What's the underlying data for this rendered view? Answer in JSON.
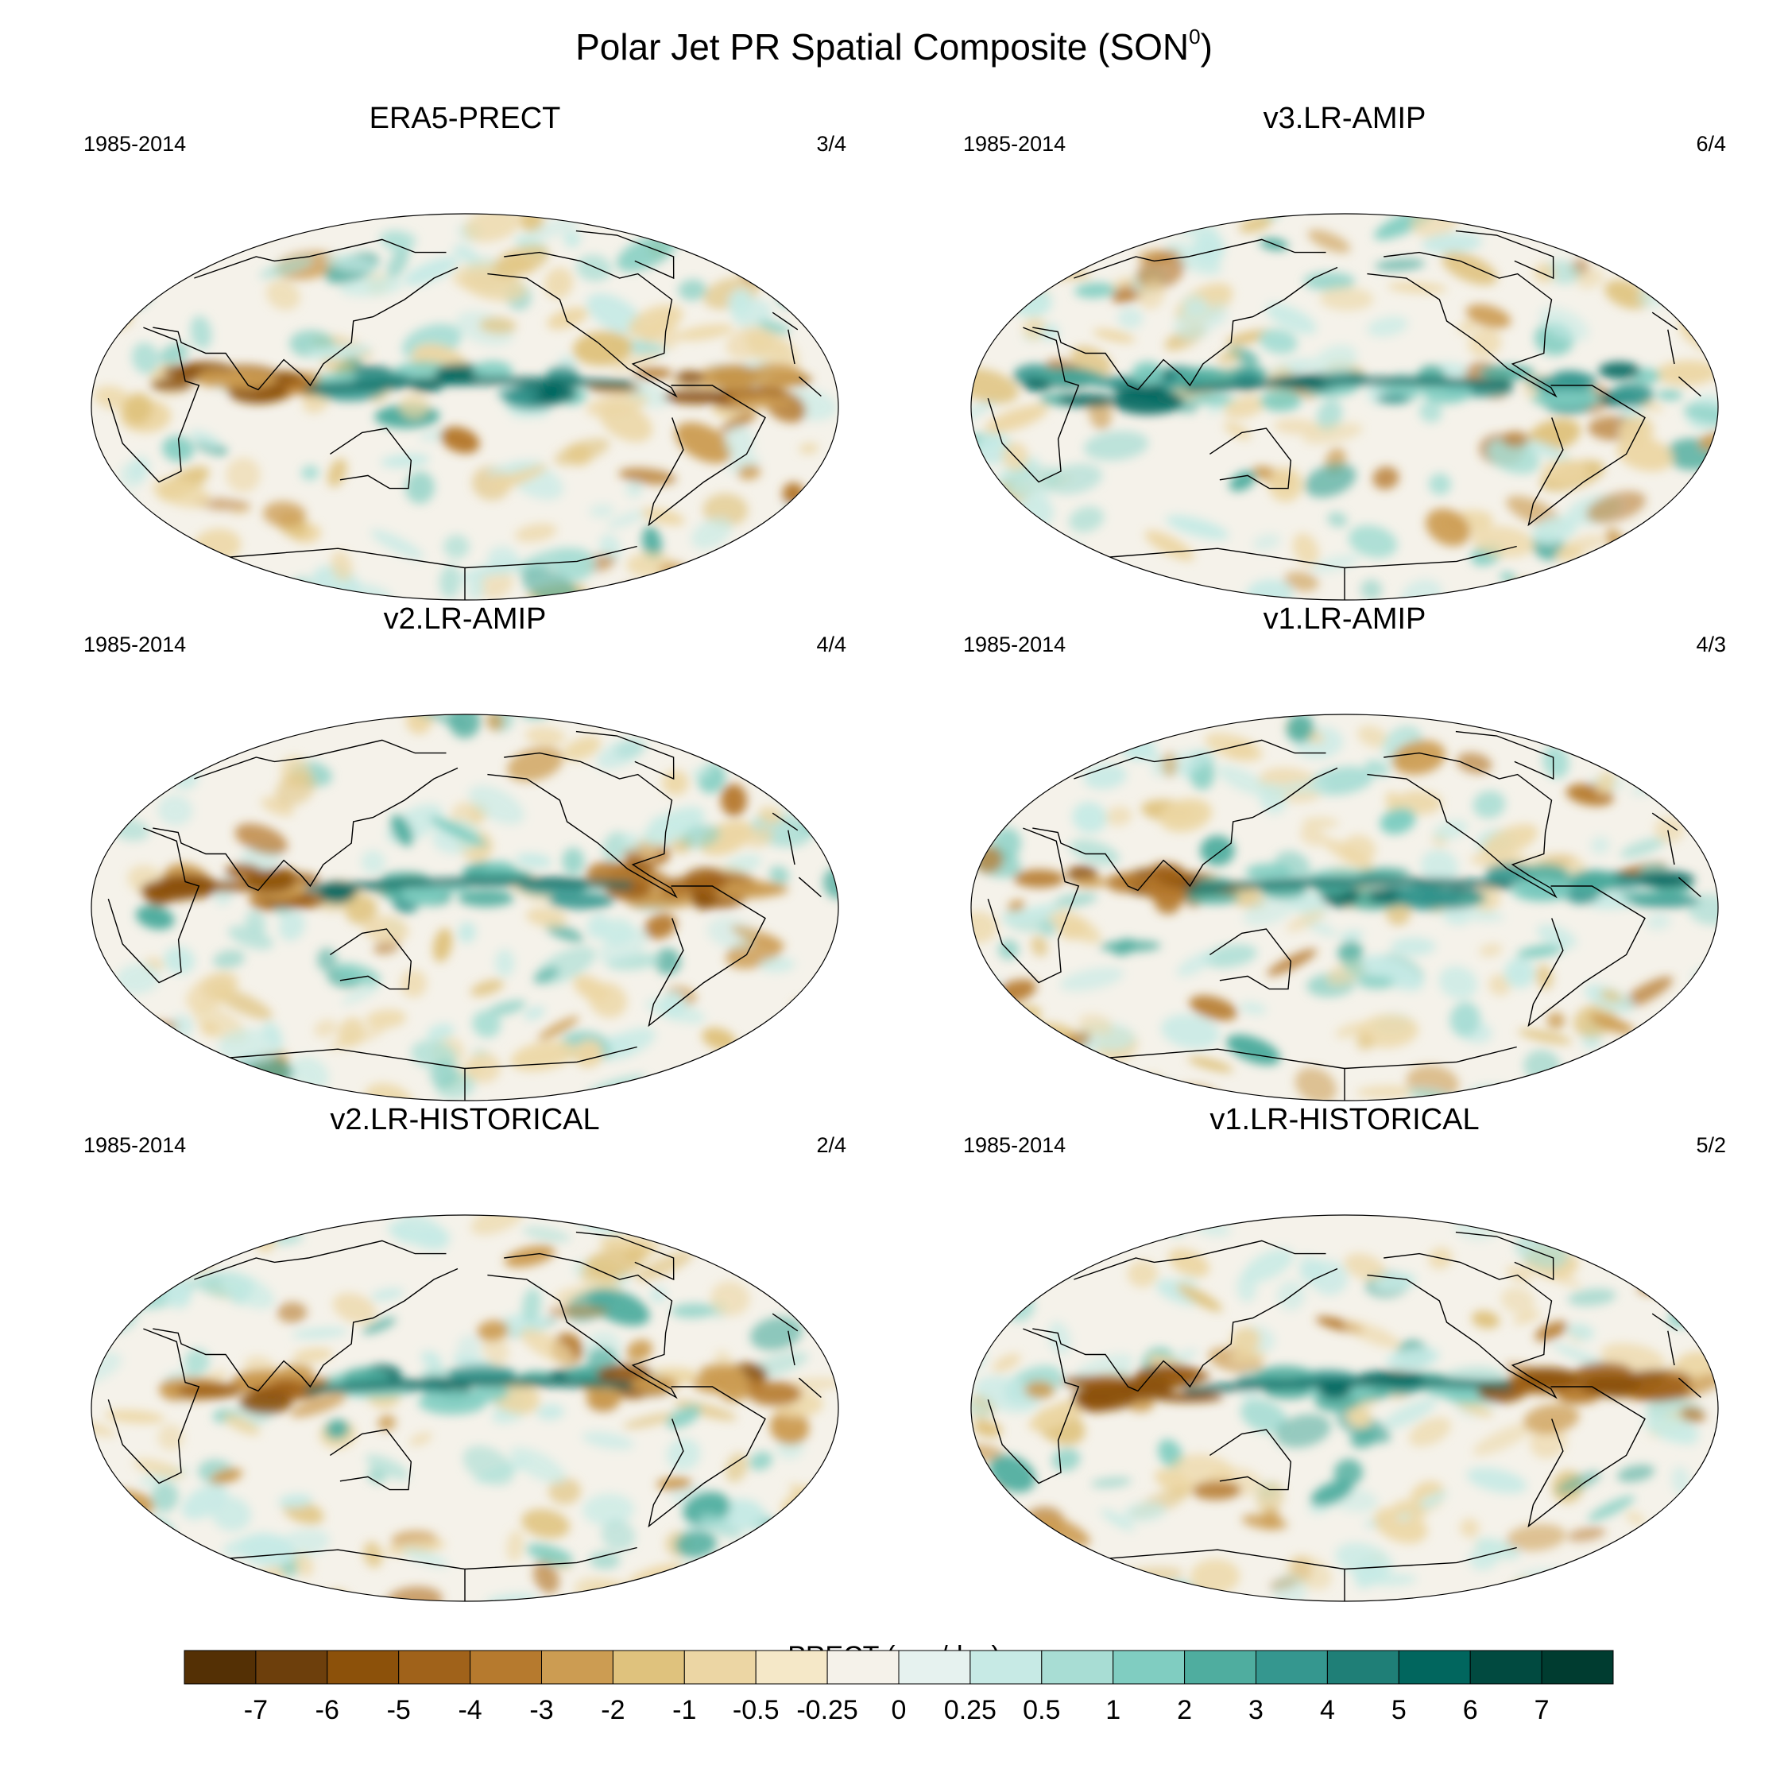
{
  "title": "Polar Jet PR Spatial Composite (SON",
  "title_superscript": "0",
  "title_suffix": ")",
  "panels": [
    {
      "title": "ERA5-PRECT",
      "years": "1985-2014",
      "count": "3/4"
    },
    {
      "title": "v3.LR-AMIP",
      "years": "1985-2014",
      "count": "6/4"
    },
    {
      "title": "v2.LR-AMIP",
      "years": "1985-2014",
      "count": "4/4"
    },
    {
      "title": "v1.LR-AMIP",
      "years": "1985-2014",
      "count": "4/3"
    },
    {
      "title": "v2.LR-HISTORICAL",
      "years": "1985-2014",
      "count": "2/4"
    },
    {
      "title": "v1.LR-HISTORICAL",
      "years": "1985-2014",
      "count": "5/2"
    }
  ],
  "colorbar": {
    "title": "PRECT (mm/day)",
    "levels": [
      "-7",
      "-6",
      "-5",
      "-4",
      "-3",
      "-2",
      "-1",
      "-0.5",
      "-0.25",
      "0",
      "0.25",
      "0.5",
      "1",
      "2",
      "3",
      "4",
      "5",
      "6",
      "7"
    ],
    "colors": [
      "#543005",
      "#6d3f0c",
      "#8c510a",
      "#a0621a",
      "#b67a2e",
      "#cc9c52",
      "#dfc27d",
      "#ecd6a4",
      "#f5e8c8",
      "#f5f2ea",
      "#e6f2ef",
      "#c7eae5",
      "#a8ddd4",
      "#80cdc1",
      "#4fad9f",
      "#35978f",
      "#1f7f77",
      "#01665e",
      "#014a40",
      "#003c30"
    ]
  }
}
